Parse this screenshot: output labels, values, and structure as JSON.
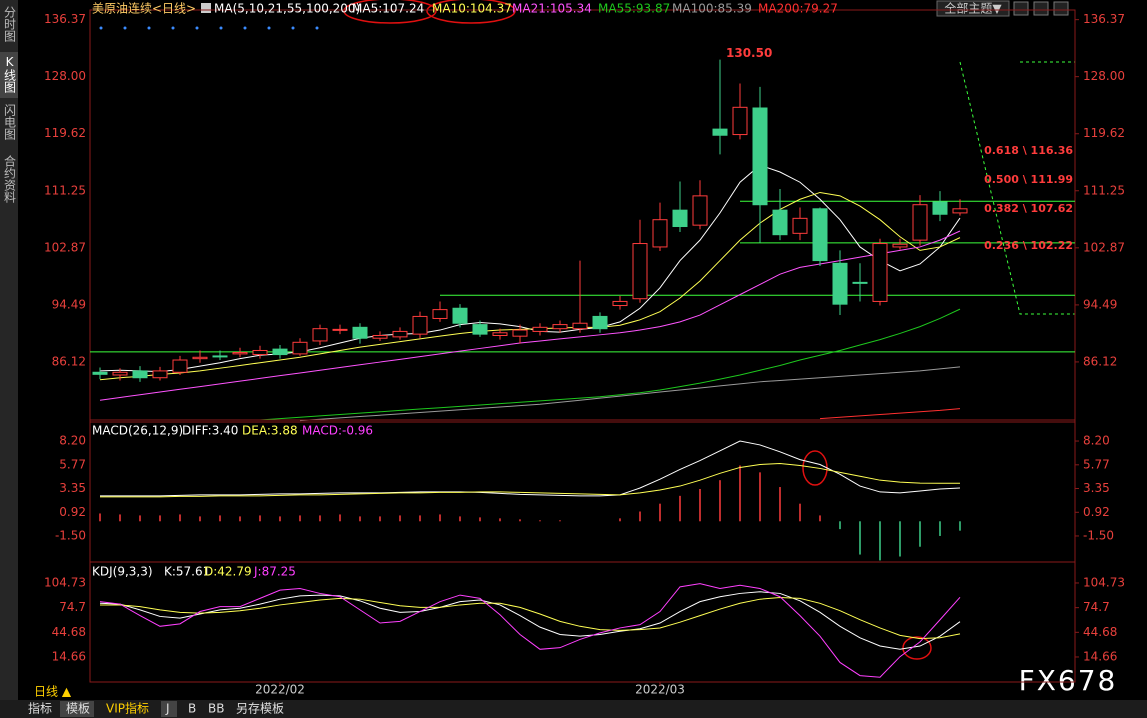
{
  "ui": {
    "sidebar": [
      "分时图",
      "K线图",
      "闪电图",
      "合约资料"
    ],
    "theme_button": "全部主题▼",
    "period": "日线 ▲",
    "tabs": [
      "指标",
      "模板",
      "VIP指标",
      "J",
      "B",
      "BB",
      "另存模板"
    ],
    "watermark": "FX678"
  },
  "chart_data": [
    {
      "type": "candlestick",
      "title": "美原油连续<日线>",
      "subtitle": "MA(5,10,21,55,100,200)",
      "categories": [
        null,
        null,
        null,
        null,
        null,
        null,
        null,
        null,
        null,
        "2022/02",
        null,
        null,
        null,
        null,
        null,
        null,
        null,
        null,
        null,
        null,
        null,
        null,
        null,
        null,
        null,
        null,
        null,
        null,
        "2022/03",
        null,
        null,
        null,
        null,
        null,
        null,
        null,
        null,
        null,
        null,
        null,
        null,
        null,
        null,
        null
      ],
      "open": [
        84.6,
        84.2,
        84.8,
        83.8,
        84.6,
        86.6,
        87.0,
        87.3,
        87.2,
        88.0,
        87.3,
        89.2,
        90.8,
        91.2,
        89.6,
        89.8,
        90.2,
        92.5,
        94.0,
        91.6,
        90.0,
        89.9,
        90.6,
        91.0,
        91.0,
        92.8,
        94.4,
        95.4,
        103.0,
        108.4,
        106.2,
        120.3,
        119.5,
        123.4,
        108.4,
        105.0,
        108.6,
        100.6,
        97.8,
        95.0,
        103.0,
        104.0,
        109.6,
        108.0
      ],
      "high": [
        85.3,
        85.2,
        85.5,
        85.4,
        87.0,
        87.8,
        87.8,
        88.2,
        88.5,
        88.6,
        89.6,
        91.6,
        91.6,
        91.8,
        90.6,
        91.2,
        93.5,
        95.0,
        94.6,
        92.2,
        91.0,
        91.6,
        91.8,
        92.2,
        101.0,
        93.4,
        95.8,
        107.0,
        109.5,
        112.6,
        112.8,
        130.5,
        127.0,
        126.5,
        111.5,
        108.8,
        108.8,
        102.5,
        100.6,
        104.2,
        104.2,
        110.6,
        111.2,
        110.0
      ],
      "low": [
        83.6,
        83.4,
        83.2,
        83.4,
        84.2,
        86.0,
        86.4,
        86.8,
        86.6,
        86.6,
        87.0,
        88.6,
        90.2,
        88.8,
        89.2,
        89.4,
        89.6,
        92.0,
        91.2,
        89.8,
        89.4,
        88.8,
        90.0,
        90.4,
        90.4,
        90.4,
        93.8,
        94.8,
        102.4,
        105.2,
        105.6,
        116.6,
        118.8,
        103.6,
        104.0,
        104.0,
        100.2,
        93.0,
        95.0,
        94.4,
        102.6,
        103.2,
        106.8,
        107.6
      ],
      "close": [
        84.3,
        84.6,
        83.8,
        84.8,
        86.4,
        86.8,
        86.9,
        87.5,
        87.8,
        87.2,
        89.0,
        91.0,
        90.9,
        89.6,
        90.0,
        90.6,
        92.8,
        93.8,
        91.8,
        90.2,
        90.4,
        90.8,
        91.2,
        91.6,
        91.8,
        91.0,
        95.0,
        103.5,
        107.0,
        106.0,
        110.5,
        119.4,
        123.5,
        109.2,
        104.8,
        107.2,
        101.0,
        94.6,
        97.7,
        103.5,
        103.4,
        109.2,
        107.8,
        108.6
      ],
      "up_color": "#ff3c3c",
      "down_color": "#3ed08a",
      "tick_color": "#e8403c",
      "series": [
        {
          "name": "MA5:107.24",
          "color": "#ffffff",
          "values": [
            84.8,
            84.9,
            84.8,
            84.7,
            85.0,
            85.5,
            86.0,
            86.6,
            87.1,
            87.3,
            87.6,
            88.2,
            88.9,
            89.6,
            90.0,
            90.2,
            90.3,
            90.8,
            91.6,
            91.9,
            91.7,
            91.3,
            90.6,
            90.5,
            90.9,
            91.2,
            92.0,
            94.0,
            97.0,
            101.0,
            104.0,
            108.0,
            112.5,
            115.0,
            114.0,
            112.5,
            110.0,
            107.0,
            103.0,
            101.0,
            99.5,
            100.5,
            103.0,
            107.24
          ]
        },
        {
          "name": "MA10:104.37",
          "color": "#ffff54",
          "values": [
            83.5,
            83.8,
            84.0,
            84.3,
            84.5,
            84.8,
            85.2,
            85.6,
            86.0,
            86.4,
            86.8,
            87.3,
            87.8,
            88.3,
            88.7,
            89.1,
            89.5,
            89.9,
            90.3,
            90.6,
            90.8,
            90.9,
            91.0,
            91.1,
            91.2,
            91.2,
            91.5,
            92.3,
            93.5,
            95.5,
            98.0,
            101.0,
            104.0,
            106.5,
            108.5,
            110.0,
            111.0,
            110.5,
            109.0,
            107.0,
            104.5,
            102.5,
            103.0,
            104.37
          ]
        },
        {
          "name": "MA21:105.34",
          "color": "#ff54ff",
          "values": [
            80.5,
            80.9,
            81.3,
            81.7,
            82.1,
            82.5,
            82.9,
            83.3,
            83.7,
            84.1,
            84.5,
            84.9,
            85.3,
            85.7,
            86.1,
            86.5,
            86.9,
            87.3,
            87.7,
            88.1,
            88.5,
            88.9,
            89.2,
            89.5,
            89.8,
            90.1,
            90.4,
            90.8,
            91.3,
            92.0,
            93.0,
            94.5,
            96.0,
            97.5,
            99.0,
            100.0,
            100.5,
            101.0,
            101.5,
            102.0,
            102.5,
            103.0,
            104.0,
            105.34
          ]
        },
        {
          "name": "MA55:93.87",
          "color": "#1ec81e",
          "values": [
            null,
            null,
            null,
            null,
            null,
            null,
            null,
            null,
            77.6,
            77.8,
            78.0,
            78.2,
            78.4,
            78.6,
            78.8,
            79.0,
            79.2,
            79.4,
            79.6,
            79.8,
            80.0,
            80.2,
            80.4,
            80.6,
            80.8,
            81.0,
            81.3,
            81.6,
            82.0,
            82.5,
            83.0,
            83.6,
            84.2,
            84.9,
            85.6,
            86.4,
            87.1,
            87.8,
            88.6,
            89.4,
            90.3,
            91.3,
            92.5,
            93.87
          ]
        },
        {
          "name": "MA100:85.39",
          "color": "#9a9a9a",
          "values": [
            null,
            null,
            null,
            null,
            null,
            null,
            null,
            null,
            null,
            null,
            77.5,
            77.7,
            77.9,
            78.1,
            78.3,
            78.5,
            78.7,
            78.9,
            79.1,
            79.3,
            79.5,
            79.7,
            79.9,
            80.2,
            80.5,
            80.8,
            81.1,
            81.4,
            81.7,
            82.0,
            82.3,
            82.6,
            82.9,
            83.2,
            83.4,
            83.6,
            83.8,
            84.0,
            84.2,
            84.4,
            84.6,
            84.8,
            85.1,
            85.39
          ]
        },
        {
          "name": "MA200:79.27",
          "color": "#ff3030",
          "values": [
            null,
            null,
            null,
            null,
            null,
            null,
            null,
            null,
            null,
            null,
            null,
            null,
            null,
            null,
            null,
            null,
            null,
            null,
            null,
            null,
            null,
            null,
            null,
            null,
            null,
            null,
            null,
            null,
            null,
            null,
            null,
            null,
            null,
            null,
            null,
            null,
            77.8,
            78.0,
            78.2,
            78.4,
            78.6,
            78.8,
            79.0,
            79.27
          ]
        }
      ],
      "levels": [
        109.7,
        103.6,
        95.9,
        87.6
      ],
      "level_color": "#3cff3c",
      "annotations": [
        "130.50",
        "0.618 \\ 116.36",
        "0.500 \\ 111.99",
        "0.382 \\ 107.62",
        "0.236 \\ 102.22"
      ],
      "ylim": [
        77.3,
        137.2
      ],
      "yticks": [
        136.37,
        {
          "value": 128,
          "label": "128.00"
        },
        119.62,
        111.25,
        102.87,
        94.49,
        86.12
      ]
    },
    {
      "type": "combo",
      "title": "MACD(26,12,9)",
      "tick_color": "#e8403c",
      "series": [
        {
          "name": "MACD:-0.96",
          "type": "bar",
          "up_color": "#ff3c3c",
          "down_color": "#3ed08a",
          "values": [
            0.8,
            0.7,
            0.6,
            0.6,
            0.7,
            0.5,
            0.6,
            0.5,
            0.6,
            0.5,
            0.6,
            0.6,
            0.7,
            0.5,
            0.5,
            0.6,
            0.6,
            0.7,
            0.5,
            0.4,
            0.3,
            0.2,
            0.1,
            0.1,
            0.0,
            0.0,
            0.3,
            1.0,
            1.8,
            2.6,
            3.3,
            4.2,
            5.7,
            5.0,
            3.5,
            1.8,
            0.6,
            -0.8,
            -3.4,
            -4.0,
            -3.6,
            -2.6,
            -1.5,
            -0.96
          ]
        },
        {
          "name": "DIFF:3.40",
          "type": "line",
          "color": "#ffffff",
          "values": [
            2.6,
            2.6,
            2.6,
            2.6,
            2.65,
            2.7,
            2.7,
            2.7,
            2.75,
            2.8,
            2.8,
            2.85,
            2.9,
            2.9,
            2.9,
            2.95,
            3.0,
            3.0,
            3.0,
            2.95,
            2.85,
            2.75,
            2.7,
            2.65,
            2.6,
            2.6,
            2.7,
            3.4,
            4.3,
            5.3,
            6.2,
            7.2,
            8.2,
            7.8,
            7.1,
            6.3,
            5.8,
            4.8,
            3.6,
            3.0,
            2.9,
            3.1,
            3.3,
            3.4
          ]
        },
        {
          "name": "DEA:3.88",
          "type": "line",
          "color": "#ffff54",
          "values": [
            2.5,
            2.5,
            2.5,
            2.5,
            2.55,
            2.55,
            2.6,
            2.6,
            2.6,
            2.65,
            2.7,
            2.7,
            2.75,
            2.8,
            2.85,
            2.9,
            2.9,
            2.95,
            2.95,
            3.0,
            3.0,
            2.95,
            2.9,
            2.85,
            2.8,
            2.75,
            2.7,
            2.9,
            3.2,
            3.6,
            4.2,
            4.9,
            5.5,
            5.8,
            5.9,
            5.7,
            5.4,
            5.0,
            4.6,
            4.2,
            4.0,
            3.9,
            3.88,
            3.88
          ]
        }
      ],
      "ylim": [
        -4.16,
        9.94
      ],
      "yticks": [
        {
          "value": 8.2,
          "label": "8.20"
        },
        5.77,
        3.35,
        0.92,
        {
          "value": -1.5,
          "label": "-1.50"
        }
      ]
    },
    {
      "type": "line",
      "title": "KDJ(9,3,3)",
      "tick_color": "#e8403c",
      "series": [
        {
          "name": "K:57.61",
          "color": "#ffffff",
          "values": [
            80,
            79,
            72,
            64,
            62,
            67,
            72,
            74,
            79,
            85,
            89,
            90,
            89,
            83,
            74,
            69,
            70,
            75,
            82,
            84,
            78,
            65,
            51,
            42,
            40,
            42,
            46,
            49,
            56,
            70,
            82,
            88,
            92,
            94,
            92,
            83,
            69,
            52,
            38,
            28,
            24,
            28,
            40,
            57.61
          ]
        },
        {
          "name": "D:42.79",
          "color": "#ffff54",
          "values": [
            78,
            78,
            76,
            72,
            69,
            68,
            69,
            71,
            74,
            78,
            81,
            84,
            86,
            85,
            81,
            77,
            75,
            75,
            78,
            80,
            80,
            75,
            67,
            58,
            52,
            48,
            47,
            48,
            50,
            57,
            65,
            73,
            80,
            85,
            87,
            86,
            80,
            71,
            60,
            50,
            41,
            37,
            38,
            42.79
          ]
        },
        {
          "name": "J:87.25",
          "color": "#ff40ff",
          "values": [
            82,
            79,
            65,
            52,
            55,
            70,
            76,
            76,
            86,
            96,
            98,
            92,
            88,
            72,
            56,
            58,
            70,
            82,
            90,
            86,
            66,
            42,
            24,
            26,
            36,
            44,
            50,
            54,
            70,
            100,
            104,
            98,
            102,
            98,
            88,
            65,
            40,
            8,
            -8,
            -10,
            15,
            33,
            60,
            87.25
          ]
        }
      ],
      "ylim": [
        -15.8,
        125.4
      ],
      "yticks": [
        104.73,
        74.7,
        44.68,
        14.66
      ]
    }
  ]
}
